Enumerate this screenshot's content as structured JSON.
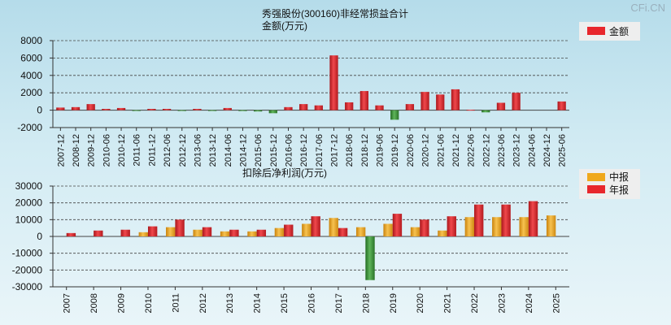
{
  "watermark": "CFi.CN",
  "colors": {
    "positive": "#e8262c",
    "negative": "#3f8f3a",
    "interim": "#f0a81c",
    "annual": "#e8262c",
    "legend_box": "#eeeeee"
  },
  "chart_data": [
    {
      "type": "bar",
      "title": "秀强股份(300160)非经常损益合计",
      "subtitle": "金额(万元)",
      "legend": [
        "金额"
      ],
      "legend_position": "top-right",
      "grid": true,
      "ylim": [
        -2000,
        8000
      ],
      "yticks": [
        8000,
        6000,
        4000,
        2000,
        0,
        -2000
      ],
      "categories": [
        "2007-12",
        "2008-12",
        "2009-12",
        "2010-06",
        "2010-12",
        "2011-06",
        "2011-12",
        "2012-06",
        "2012-12",
        "2013-06",
        "2013-12",
        "2014-06",
        "2014-12",
        "2015-06",
        "2015-12",
        "2016-06",
        "2016-12",
        "2017-06",
        "2017-12",
        "2018-06",
        "2018-12",
        "2019-06",
        "2019-12",
        "2020-06",
        "2020-12",
        "2021-06",
        "2021-12",
        "2022-06",
        "2022-12",
        "2023-06",
        "2023-12",
        "2024-06",
        "2024-12",
        "2025-06"
      ],
      "series": [
        {
          "name": "金额",
          "values": [
            300,
            350,
            700,
            150,
            250,
            -80,
            150,
            150,
            -60,
            150,
            -60,
            250,
            -100,
            -150,
            -350,
            350,
            700,
            550,
            6300,
            900,
            2200,
            550,
            -1100,
            700,
            2100,
            1800,
            2400,
            50,
            -250,
            850,
            2000,
            0,
            0,
            1000
          ]
        }
      ]
    },
    {
      "type": "bar",
      "title": "扣除后净利润(万元)",
      "legend": [
        "中报",
        "年报"
      ],
      "legend_position": "top-right",
      "grid": true,
      "ylim": [
        -30000,
        30000
      ],
      "yticks": [
        30000,
        20000,
        10000,
        0,
        -10000,
        -20000,
        -30000
      ],
      "categories": [
        "2007",
        "2008",
        "2009",
        "2010",
        "2011",
        "2012",
        "2013",
        "2014",
        "2015",
        "2016",
        "2017",
        "2018",
        "2019",
        "2020",
        "2021",
        "2022",
        "2023",
        "2024",
        "2025"
      ],
      "series": [
        {
          "name": "中报",
          "values": [
            null,
            null,
            null,
            2500,
            5500,
            4000,
            3000,
            3000,
            5000,
            7500,
            11000,
            5500,
            7500,
            5500,
            3500,
            11500,
            11500,
            11500,
            12500
          ]
        },
        {
          "name": "年报",
          "values": [
            2000,
            3500,
            4000,
            6000,
            10000,
            5500,
            4000,
            4000,
            7000,
            12000,
            5000,
            -26000,
            13500,
            10000,
            12000,
            19000,
            19000,
            21000,
            null
          ]
        }
      ]
    }
  ]
}
